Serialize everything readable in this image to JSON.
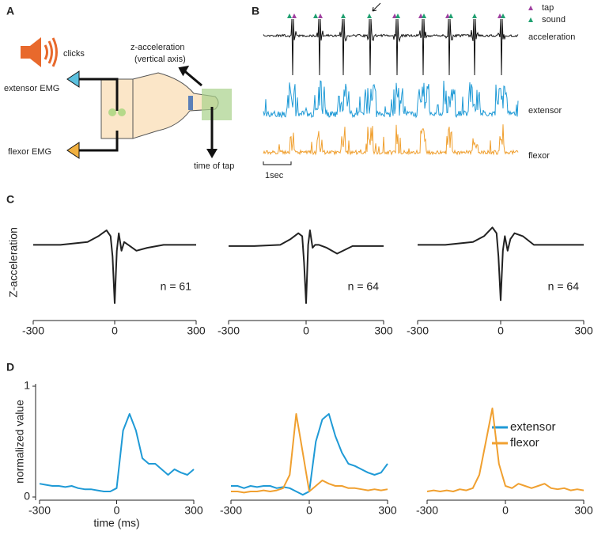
{
  "panel_labels": [
    "A",
    "B",
    "C",
    "D"
  ],
  "diagram": {
    "sound": "clicks",
    "accel": "z-acceleration",
    "accel_note": "(vertical axis)",
    "extensor": "extensor EMG",
    "flexor": "flexor EMG",
    "tap": "time of tap"
  },
  "traces": {
    "legend": [
      "tap",
      "sound"
    ],
    "labels": [
      "acceleration",
      "extensor",
      "flexor"
    ],
    "scale": "1sec"
  },
  "chart_data": [
    {
      "type": "line",
      "ylabel": "Z-acceleration",
      "annotation": "n = 61",
      "xlim": [
        -300,
        300
      ],
      "xticks": [
        -300,
        0,
        300
      ],
      "ylim": [
        -1,
        0.4
      ],
      "x": [
        -300,
        -200,
        -100,
        -60,
        -30,
        -15,
        -8,
        0,
        8,
        15,
        25,
        35,
        50,
        80,
        120,
        180,
        250,
        300
      ],
      "series": [
        {
          "color": "#222222",
          "values": [
            0,
            0,
            0.05,
            0.15,
            0.25,
            0.15,
            -0.2,
            -1,
            -0.1,
            0.2,
            -0.1,
            0.05,
            0,
            -0.1,
            -0.05,
            0,
            0,
            0
          ]
        }
      ]
    },
    {
      "type": "line",
      "annotation": "n = 64",
      "xlim": [
        -300,
        300
      ],
      "xticks": [
        -300,
        0,
        300
      ],
      "ylim": [
        -1,
        0.4
      ],
      "x": [
        -300,
        -200,
        -100,
        -60,
        -30,
        -15,
        -8,
        0,
        8,
        15,
        25,
        35,
        50,
        80,
        120,
        180,
        250,
        300
      ],
      "series": [
        {
          "color": "#222222",
          "values": [
            -0.02,
            -0.02,
            0,
            0.1,
            0.2,
            0.15,
            -0.3,
            -1,
            0,
            0.25,
            -0.05,
            0,
            0,
            -0.05,
            -0.15,
            -0.02,
            -0.02,
            -0.02
          ]
        }
      ]
    },
    {
      "type": "line",
      "annotation": "n = 64",
      "xlim": [
        -300,
        300
      ],
      "xticks": [
        -300,
        0,
        300
      ],
      "ylim": [
        -1,
        0.4
      ],
      "x": [
        -300,
        -200,
        -100,
        -60,
        -30,
        -15,
        -8,
        0,
        8,
        15,
        25,
        35,
        50,
        80,
        120,
        180,
        250,
        300
      ],
      "series": [
        {
          "color": "#222222",
          "values": [
            0,
            0,
            0.05,
            0.15,
            0.3,
            0.2,
            -0.2,
            -0.95,
            -0.1,
            0.15,
            -0.1,
            0.1,
            0.2,
            0.15,
            0,
            0,
            0,
            0
          ]
        }
      ]
    },
    {
      "type": "line",
      "ylabel": "normalized value",
      "xlabel": "time (ms)",
      "xlim": [
        -300,
        300
      ],
      "xticks": [
        -300,
        0,
        300
      ],
      "ylim": [
        0,
        1
      ],
      "yticks": [
        0,
        1
      ],
      "x": [
        -300,
        -275,
        -250,
        -225,
        -200,
        -175,
        -150,
        -125,
        -100,
        -75,
        -50,
        -25,
        0,
        25,
        50,
        75,
        100,
        125,
        150,
        175,
        200,
        225,
        250,
        275,
        300
      ],
      "series": [
        {
          "color": "#1f9ad6",
          "values": [
            0.12,
            0.11,
            0.1,
            0.1,
            0.09,
            0.1,
            0.08,
            0.07,
            0.07,
            0.06,
            0.05,
            0.05,
            0.08,
            0.6,
            0.75,
            0.6,
            0.35,
            0.3,
            0.3,
            0.25,
            0.2,
            0.25,
            0.22,
            0.2,
            0.25
          ]
        }
      ]
    },
    {
      "type": "line",
      "xlim": [
        -300,
        300
      ],
      "xticks": [
        -300,
        0,
        300
      ],
      "ylim": [
        0,
        1
      ],
      "x": [
        -300,
        -275,
        -250,
        -225,
        -200,
        -175,
        -150,
        -125,
        -100,
        -75,
        -50,
        -25,
        0,
        25,
        50,
        75,
        100,
        125,
        150,
        175,
        200,
        225,
        250,
        275,
        300
      ],
      "series": [
        {
          "name": "extensor",
          "color": "#1f9ad6",
          "values": [
            0.1,
            0.1,
            0.08,
            0.1,
            0.09,
            0.1,
            0.1,
            0.08,
            0.09,
            0.08,
            0.05,
            0.02,
            0.05,
            0.5,
            0.7,
            0.75,
            0.55,
            0.4,
            0.3,
            0.28,
            0.25,
            0.22,
            0.2,
            0.22,
            0.3
          ]
        },
        {
          "name": "flexor",
          "color": "#f0a030",
          "values": [
            0.05,
            0.05,
            0.04,
            0.05,
            0.05,
            0.06,
            0.05,
            0.06,
            0.08,
            0.2,
            0.75,
            0.4,
            0.05,
            0.1,
            0.15,
            0.12,
            0.1,
            0.1,
            0.08,
            0.08,
            0.07,
            0.06,
            0.07,
            0.06,
            0.07
          ]
        }
      ]
    },
    {
      "type": "line",
      "xlim": [
        -300,
        300
      ],
      "xticks": [
        -300,
        0,
        300
      ],
      "ylim": [
        0,
        1
      ],
      "x": [
        -300,
        -275,
        -250,
        -225,
        -200,
        -175,
        -150,
        -125,
        -100,
        -75,
        -50,
        -25,
        0,
        25,
        50,
        75,
        100,
        125,
        150,
        175,
        200,
        225,
        250,
        275,
        300
      ],
      "series": [
        {
          "color": "#f0a030",
          "values": [
            0.05,
            0.06,
            0.05,
            0.06,
            0.05,
            0.07,
            0.06,
            0.08,
            0.2,
            0.5,
            0.8,
            0.3,
            0.1,
            0.08,
            0.12,
            0.1,
            0.08,
            0.1,
            0.12,
            0.08,
            0.07,
            0.08,
            0.06,
            0.07,
            0.06
          ]
        }
      ]
    }
  ]
}
